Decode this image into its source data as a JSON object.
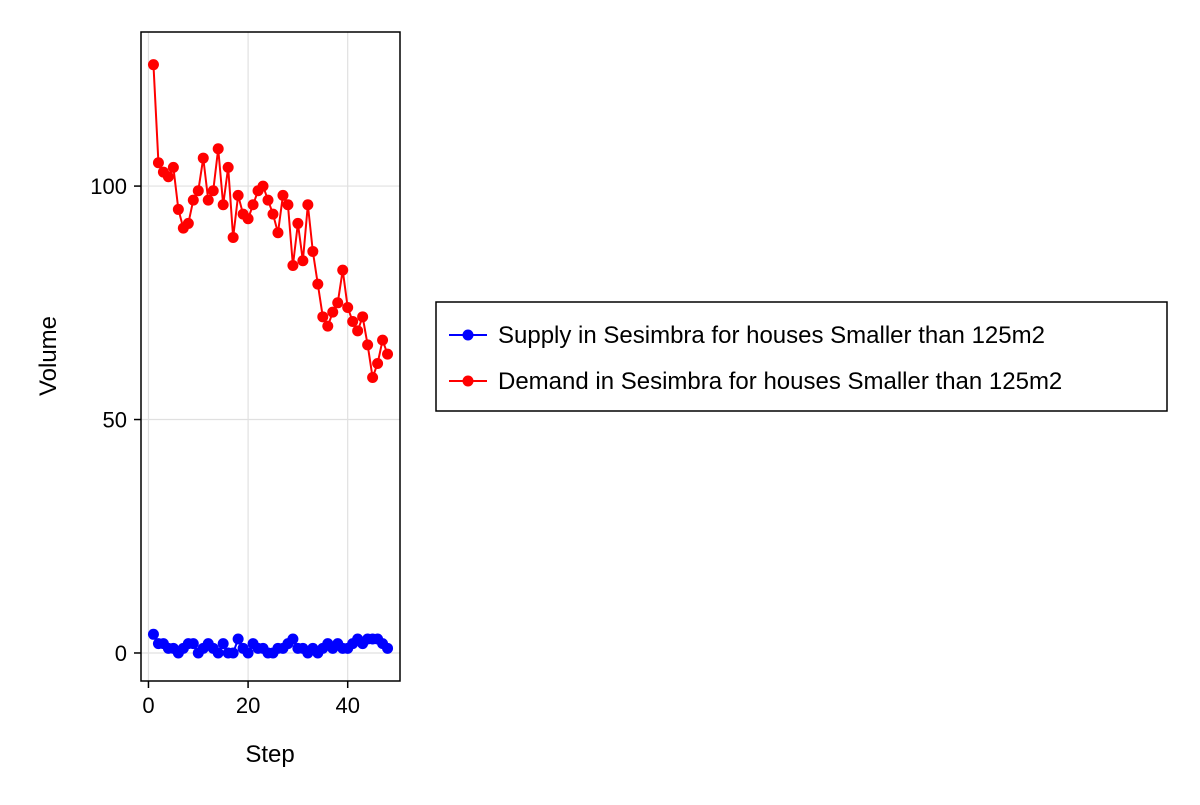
{
  "chart_data": {
    "type": "line",
    "title": "",
    "xlabel": "Step",
    "ylabel": "Volume",
    "xlim": [
      -1.5,
      50.5
    ],
    "ylim": [
      -6,
      133
    ],
    "xticks": [
      0,
      20,
      40
    ],
    "yticks": [
      0,
      50,
      100
    ],
    "grid": true,
    "legend_position": "right",
    "x": [
      1,
      2,
      3,
      4,
      5,
      6,
      7,
      8,
      9,
      10,
      11,
      12,
      13,
      14,
      15,
      16,
      17,
      18,
      19,
      20,
      21,
      22,
      23,
      24,
      25,
      26,
      27,
      28,
      29,
      30,
      31,
      32,
      33,
      34,
      35,
      36,
      37,
      38,
      39,
      40,
      41,
      42,
      43,
      44,
      45,
      46,
      47,
      48
    ],
    "series": [
      {
        "name": "Supply in Sesimbra for houses Smaller than 125m2",
        "color": "#0000ff",
        "values": [
          4,
          2,
          2,
          1,
          1,
          0,
          1,
          2,
          2,
          0,
          1,
          2,
          1,
          0,
          2,
          0,
          0,
          3,
          1,
          0,
          2,
          1,
          1,
          0,
          0,
          1,
          1,
          2,
          3,
          1,
          1,
          0,
          1,
          0,
          1,
          2,
          1,
          2,
          1,
          1,
          2,
          3,
          2,
          3,
          3,
          3,
          2,
          1
        ]
      },
      {
        "name": "Demand in Sesimbra for houses Smaller than 125m2",
        "color": "#ff0000",
        "values": [
          126,
          105,
          103,
          102,
          104,
          95,
          91,
          92,
          97,
          99,
          106,
          97,
          99,
          108,
          96,
          104,
          89,
          98,
          94,
          93,
          96,
          99,
          100,
          97,
          94,
          90,
          98,
          96,
          83,
          92,
          84,
          96,
          86,
          79,
          72,
          70,
          73,
          75,
          82,
          74,
          71,
          69,
          72,
          66,
          59,
          62,
          67,
          64
        ]
      }
    ]
  }
}
